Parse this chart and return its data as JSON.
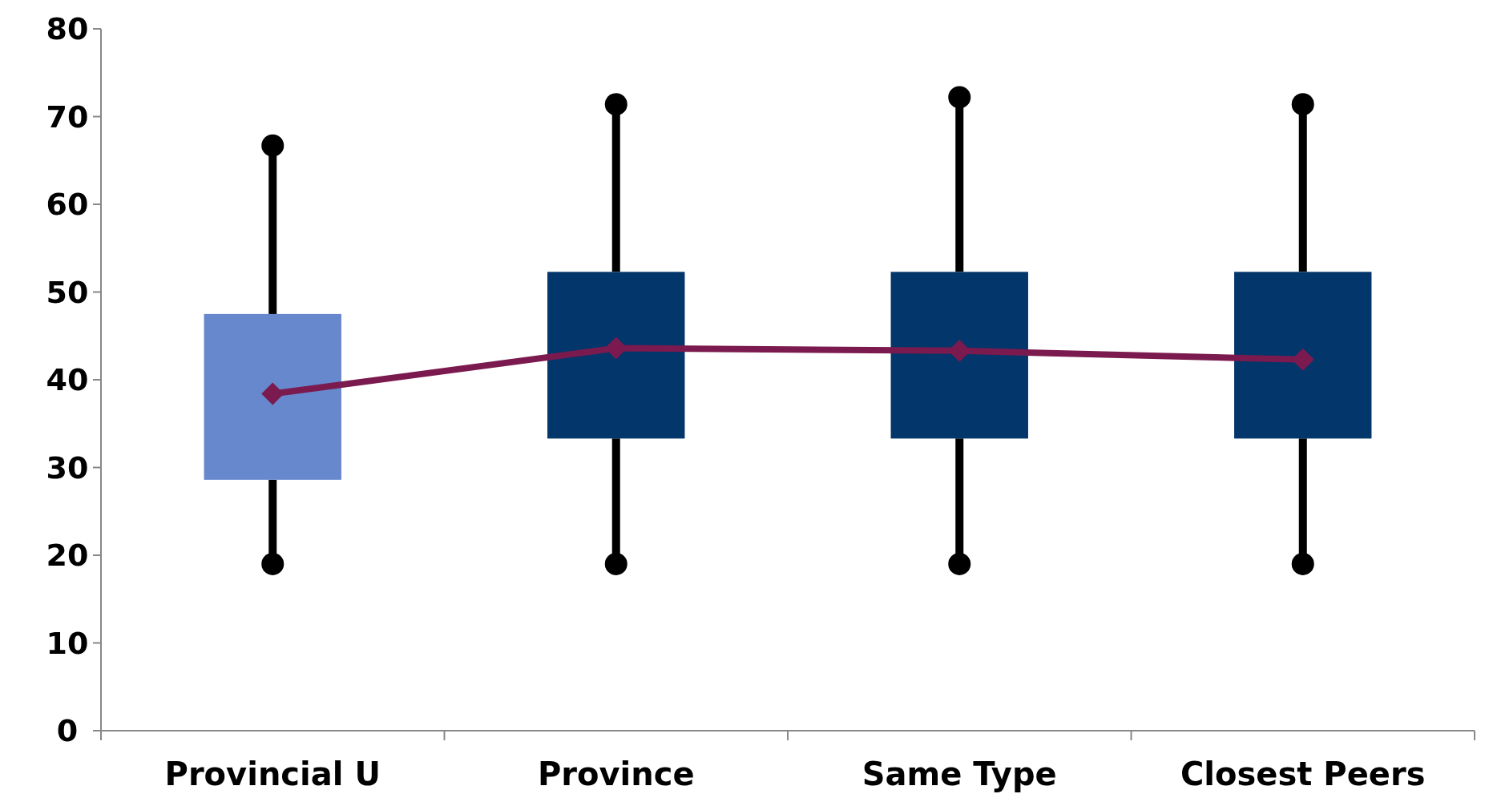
{
  "chart_data": {
    "type": "box",
    "categories": [
      "Provincial U",
      "Province",
      "Same Type",
      "Closest Peers"
    ],
    "series": [
      {
        "type": "box",
        "colors": [
          "#6788cc",
          "#03366a",
          "#03366a",
          "#03366a"
        ],
        "boxes": [
          {
            "low": 19,
            "q1": 28.6,
            "q3": 47.5,
            "high": 66.7
          },
          {
            "low": 19,
            "q1": 33.3,
            "q3": 52.3,
            "high": 71.4
          },
          {
            "low": 19,
            "q1": 33.3,
            "q3": 52.3,
            "high": 72.2
          },
          {
            "low": 19,
            "q1": 33.3,
            "q3": 52.3,
            "high": 71.4
          }
        ]
      },
      {
        "type": "line",
        "color": "#7b1a4f",
        "marker": "diamond",
        "values": [
          38.4,
          43.6,
          43.3,
          42.3
        ]
      }
    ],
    "ylim": [
      0,
      80
    ],
    "yticks": [
      0,
      10,
      20,
      30,
      40,
      50,
      60,
      70,
      80
    ],
    "grid": false
  }
}
